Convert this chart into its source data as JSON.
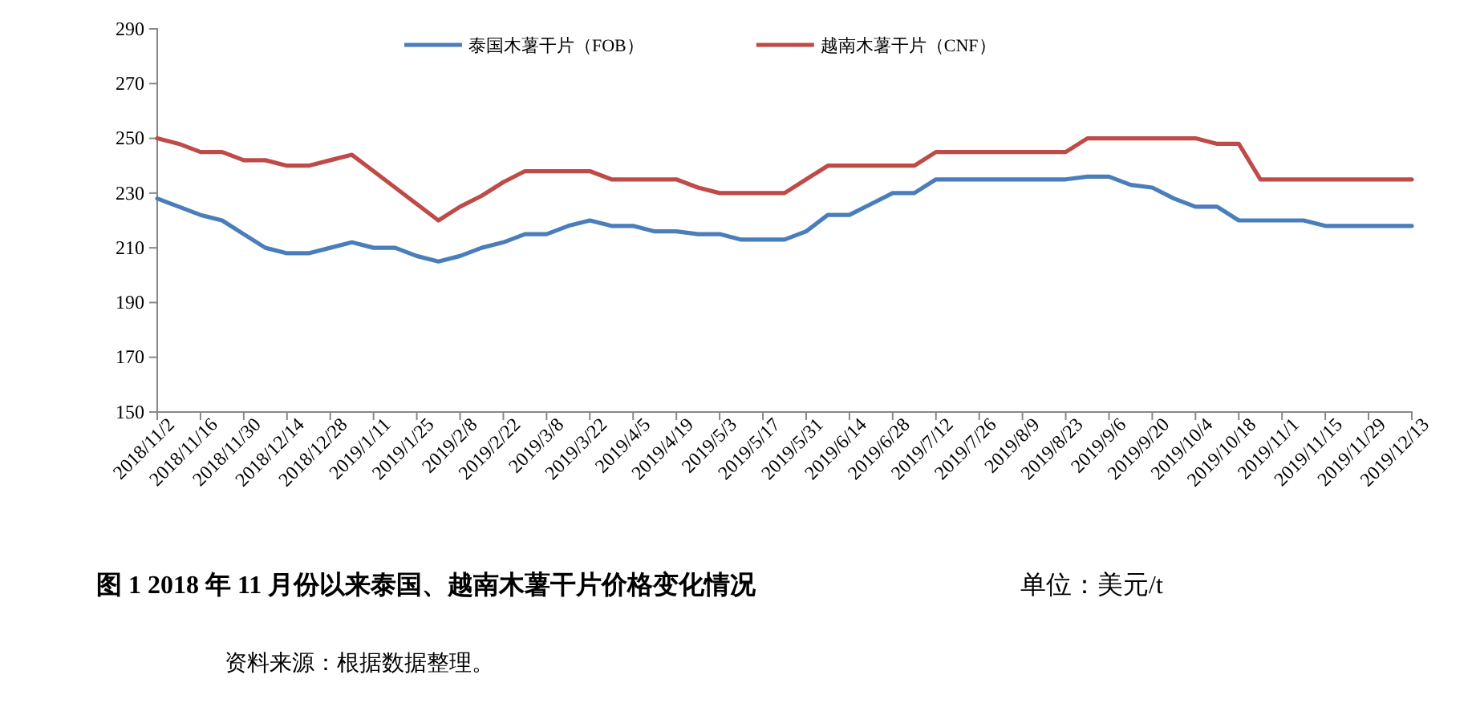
{
  "chart_data": {
    "type": "line",
    "title": "图 1   2018 年 11 月份以来泰国、越南木薯干片价格变化情况",
    "annotations": [
      "单位：美元/t",
      "资料来源：根据数据整理。"
    ],
    "x": [
      "2018-11-02",
      "2018-11-09",
      "2018-11-16",
      "2018-11-23",
      "2018-11-30",
      "2018-12-07",
      "2018-12-14",
      "2018-12-21",
      "2018-12-28",
      "2019-01-04",
      "2019-01-11",
      "2019-01-18",
      "2019-01-25",
      "2019-02-01",
      "2019-02-08",
      "2019-02-15",
      "2019-02-22",
      "2019-03-01",
      "2019-03-08",
      "2019-03-15",
      "2019-03-22",
      "2019-03-29",
      "2019-04-05",
      "2019-04-12",
      "2019-04-19",
      "2019-04-26",
      "2019-05-03",
      "2019-05-10",
      "2019-05-17",
      "2019-05-24",
      "2019-05-31",
      "2019-06-07",
      "2019-06-14",
      "2019-06-21",
      "2019-06-28",
      "2019-07-05",
      "2019-07-12",
      "2019-07-19",
      "2019-07-26",
      "2019-08-02",
      "2019-08-09",
      "2019-08-16",
      "2019-08-23",
      "2019-08-30",
      "2019-09-06",
      "2019-09-13",
      "2019-09-20",
      "2019-09-27",
      "2019-10-04",
      "2019-10-11",
      "2019-10-18",
      "2019-10-25",
      "2019-11-01",
      "2019-11-08",
      "2019-11-15",
      "2019-11-22",
      "2019-11-29",
      "2019-12-06",
      "2019-12-13"
    ],
    "series": [
      {
        "name": "泰国木薯干片（FOB）",
        "color": "#4a7ebb",
        "values": [
          228,
          225,
          222,
          220,
          215,
          210,
          208,
          208,
          210,
          212,
          210,
          210,
          207,
          205,
          207,
          210,
          212,
          215,
          215,
          218,
          220,
          218,
          218,
          216,
          216,
          215,
          215,
          213,
          213,
          213,
          216,
          222,
          222,
          226,
          230,
          230,
          235,
          235,
          235,
          235,
          235,
          235,
          235,
          236,
          236,
          233,
          232,
          228,
          225,
          225,
          220,
          220,
          220,
          220,
          218,
          218,
          218,
          218,
          218
        ]
      },
      {
        "name": "越南木薯干片（CNF）",
        "color": "#be4b48",
        "values": [
          250,
          248,
          245,
          245,
          242,
          242,
          240,
          240,
          242,
          244,
          238,
          232,
          226,
          220,
          225,
          229,
          234,
          238,
          238,
          238,
          238,
          235,
          235,
          235,
          235,
          232,
          230,
          230,
          230,
          230,
          235,
          240,
          240,
          240,
          240,
          240,
          245,
          245,
          245,
          245,
          245,
          245,
          245,
          250,
          250,
          250,
          250,
          250,
          250,
          248,
          248,
          235,
          235,
          235,
          235,
          235,
          235,
          235,
          235
        ]
      }
    ],
    "xlim": [
      "2018-11-02",
      "2019-12-13"
    ],
    "xticks": [
      {
        "value": "2018-11-02",
        "label": "2018/11/2"
      },
      {
        "value": "2018-11-16",
        "label": "2018/11/16"
      },
      {
        "value": "2018-11-30",
        "label": "2018/11/30"
      },
      {
        "value": "2018-12-14",
        "label": "2018/12/14"
      },
      {
        "value": "2018-12-28",
        "label": "2018/12/28"
      },
      {
        "value": "2019-01-11",
        "label": "2019/1/11"
      },
      {
        "value": "2019-01-25",
        "label": "2019/1/25"
      },
      {
        "value": "2019-02-08",
        "label": "2019/2/8"
      },
      {
        "value": "2019-02-22",
        "label": "2019/2/22"
      },
      {
        "value": "2019-03-08",
        "label": "2019/3/8"
      },
      {
        "value": "2019-03-22",
        "label": "2019/3/22"
      },
      {
        "value": "2019-04-05",
        "label": "2019/4/5"
      },
      {
        "value": "2019-04-19",
        "label": "2019/4/19"
      },
      {
        "value": "2019-05-03",
        "label": "2019/5/3"
      },
      {
        "value": "2019-05-17",
        "label": "2019/5/17"
      },
      {
        "value": "2019-05-31",
        "label": "2019/5/31"
      },
      {
        "value": "2019-06-14",
        "label": "2019/6/14"
      },
      {
        "value": "2019-06-28",
        "label": "2019/6/28"
      },
      {
        "value": "2019-07-12",
        "label": "2019/7/12"
      },
      {
        "value": "2019-07-26",
        "label": "2019/7/26"
      },
      {
        "value": "2019-08-09",
        "label": "2019/8/9"
      },
      {
        "value": "2019-08-23",
        "label": "2019/8/23"
      },
      {
        "value": "2019-09-06",
        "label": "2019/9/6"
      },
      {
        "value": "2019-09-20",
        "label": "2019/9/20"
      },
      {
        "value": "2019-10-04",
        "label": "2019/10/4"
      },
      {
        "value": "2019-10-18",
        "label": "2019/10/18"
      },
      {
        "value": "2019-11-01",
        "label": "2019/11/1"
      },
      {
        "value": "2019-11-15",
        "label": "2019/11/15"
      },
      {
        "value": "2019-11-29",
        "label": "2019/11/29"
      },
      {
        "value": "2019-12-13",
        "label": "2019/12/13"
      }
    ],
    "ylim": [
      150,
      290
    ],
    "yticks": [
      150,
      170,
      190,
      210,
      230,
      250,
      270,
      290
    ],
    "grid": false,
    "legend": "top",
    "marker": "none",
    "line_style": "solid"
  }
}
